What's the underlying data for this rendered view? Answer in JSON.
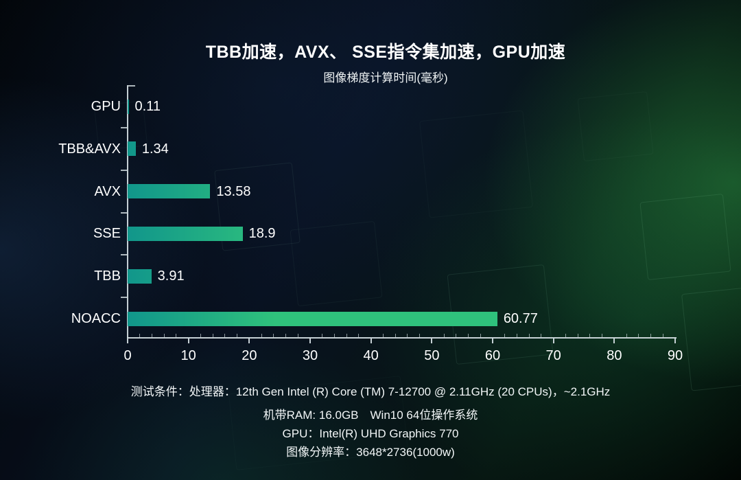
{
  "chart_data": {
    "type": "bar",
    "orientation": "horizontal",
    "title": "TBB加速，AVX、 SSE指令集加速，GPU加速",
    "subtitle": "图像梯度计算时间(毫秒)",
    "categories": [
      "GPU",
      "TBB&AVX",
      "AVX",
      "SSE",
      "TBB",
      "NOACC"
    ],
    "values": [
      0.11,
      1.34,
      13.58,
      18.9,
      3.91,
      60.77
    ],
    "value_labels": [
      "0.11",
      "1.34",
      "13.58",
      "18.9",
      "3.91",
      "60.77"
    ],
    "xlabel": "",
    "ylabel": "",
    "xlim": [
      0,
      90
    ],
    "x_ticks": [
      0,
      10,
      20,
      30,
      40,
      50,
      60,
      70,
      80,
      90
    ],
    "x_minor_tick_step": 2,
    "grid": false,
    "legend": false,
    "bar_color_start": "#11968b",
    "bar_color_end": "#2fc17c",
    "axis_color": "#d7e1e5",
    "text_color": "#ffffff",
    "background_color": "#060d16"
  },
  "footer": {
    "lines": [
      "测试条件：处理器：12th Gen Intel (R) Core (TM) 7-12700 @ 2.11GHz (20 CPUs)，~2.1GHz",
      "机带RAM: 16.0GB　Win10 64位操作系统",
      "GPU：Intel(R) UHD Graphics 770",
      "图像分辨率：3648*2736(1000w)"
    ]
  }
}
